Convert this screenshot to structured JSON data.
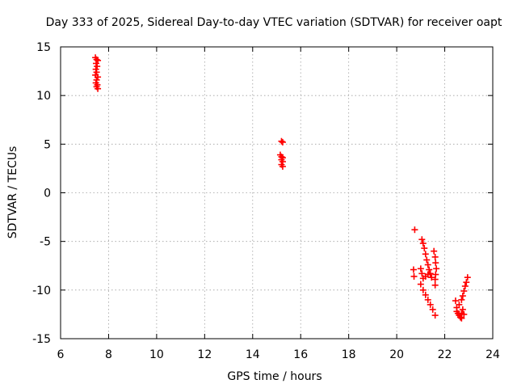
{
  "chart_data": {
    "type": "scatter",
    "title": "Day 333 of 2025, Sidereal Day-to-day VTEC variation (SDTVAR) for receiver oapt",
    "xlabel": "GPS time / hours",
    "ylabel": "SDTVAR / TECUs",
    "xlim": [
      6,
      24
    ],
    "ylim": [
      -15,
      15
    ],
    "xticks": [
      6,
      8,
      10,
      12,
      14,
      16,
      18,
      20,
      22,
      24
    ],
    "yticks": [
      -15,
      -10,
      -5,
      0,
      5,
      10,
      15
    ],
    "xtick_labels": [
      "6",
      "8",
      "10",
      "12",
      "14",
      "16",
      "18",
      "20",
      "22",
      "24"
    ],
    "ytick_labels": [
      "-15",
      "-10",
      "-5",
      "0",
      "5",
      "10",
      "15"
    ],
    "grid": true,
    "marker": "+",
    "series_color": "#ff0000",
    "series": [
      {
        "name": "SDTVAR",
        "points": [
          [
            7.45,
            13.9
          ],
          [
            7.5,
            13.7
          ],
          [
            7.55,
            13.6
          ],
          [
            7.48,
            13.3
          ],
          [
            7.52,
            13.0
          ],
          [
            7.47,
            12.7
          ],
          [
            7.5,
            12.4
          ],
          [
            7.45,
            12.1
          ],
          [
            7.55,
            11.9
          ],
          [
            7.5,
            11.6
          ],
          [
            7.47,
            11.3
          ],
          [
            7.53,
            11.1
          ],
          [
            7.5,
            10.9
          ],
          [
            7.55,
            10.7
          ],
          [
            15.2,
            5.3
          ],
          [
            15.25,
            5.2
          ],
          [
            15.15,
            3.9
          ],
          [
            15.2,
            3.7
          ],
          [
            15.25,
            3.6
          ],
          [
            15.2,
            3.4
          ],
          [
            15.25,
            3.2
          ],
          [
            15.2,
            2.9
          ],
          [
            15.25,
            2.7
          ],
          [
            20.75,
            -3.8
          ],
          [
            20.7,
            -7.9
          ],
          [
            20.72,
            -8.6
          ],
          [
            21.05,
            -4.8
          ],
          [
            21.1,
            -5.2
          ],
          [
            21.15,
            -5.7
          ],
          [
            21.2,
            -6.3
          ],
          [
            21.25,
            -6.9
          ],
          [
            21.3,
            -7.4
          ],
          [
            21.35,
            -7.9
          ],
          [
            21.4,
            -8.3
          ],
          [
            21.45,
            -8.7
          ],
          [
            21.55,
            -6.0
          ],
          [
            21.6,
            -6.6
          ],
          [
            21.62,
            -7.2
          ],
          [
            21.65,
            -7.8
          ],
          [
            21.62,
            -8.4
          ],
          [
            21.6,
            -8.9
          ],
          [
            21.6,
            -9.5
          ],
          [
            21.0,
            -7.8
          ],
          [
            21.05,
            -8.3
          ],
          [
            21.1,
            -8.8
          ],
          [
            21.2,
            -8.6
          ],
          [
            21.3,
            -8.4
          ],
          [
            21.0,
            -9.4
          ],
          [
            21.1,
            -10.0
          ],
          [
            21.2,
            -10.5
          ],
          [
            21.3,
            -11.0
          ],
          [
            21.4,
            -11.5
          ],
          [
            21.5,
            -12.0
          ],
          [
            21.6,
            -12.6
          ],
          [
            22.45,
            -11.1
          ],
          [
            22.5,
            -11.8
          ],
          [
            22.5,
            -12.2
          ],
          [
            22.55,
            -12.4
          ],
          [
            22.6,
            -12.6
          ],
          [
            22.65,
            -12.8
          ],
          [
            22.7,
            -12.4
          ],
          [
            22.75,
            -12.0
          ],
          [
            22.6,
            -11.5
          ],
          [
            22.7,
            -11.0
          ],
          [
            22.75,
            -10.6
          ],
          [
            22.8,
            -10.1
          ],
          [
            22.85,
            -9.6
          ],
          [
            22.9,
            -9.2
          ],
          [
            22.95,
            -8.7
          ],
          [
            22.7,
            -12.9
          ],
          [
            22.8,
            -12.5
          ]
        ]
      }
    ]
  }
}
